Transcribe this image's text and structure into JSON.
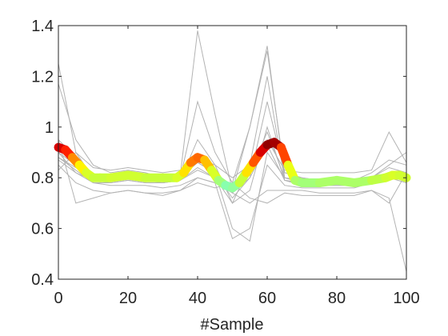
{
  "chart_data": {
    "type": "line",
    "xlabel": "#Sample",
    "ylabel": "",
    "title": "",
    "xlim": [
      0,
      100
    ],
    "ylim": [
      0.4,
      1.4
    ],
    "xticks": [
      0,
      20,
      40,
      60,
      80,
      100
    ],
    "yticks": [
      0.4,
      0.6,
      0.8,
      1.0,
      1.2,
      1.4
    ],
    "xtick_labels": [
      "0",
      "20",
      "40",
      "60",
      "80",
      "100"
    ],
    "ytick_labels": [
      "0.4",
      "0.6",
      "0.8",
      "1",
      "1.2",
      "1.4"
    ],
    "grid": false,
    "background_series_color": "#b3b3b3",
    "background_series": [
      {
        "x": [
          0,
          5,
          10,
          15,
          20,
          25,
          30,
          35,
          40,
          45,
          50,
          55,
          60,
          65,
          70,
          75,
          80,
          85,
          90,
          95,
          100
        ],
        "y": [
          1.25,
          0.9,
          0.8,
          0.8,
          0.81,
          0.8,
          0.8,
          0.81,
          1.38,
          1.05,
          0.75,
          1.0,
          1.3,
          0.82,
          0.8,
          0.79,
          0.79,
          0.79,
          0.8,
          0.82,
          0.8
        ]
      },
      {
        "x": [
          0,
          5,
          10,
          15,
          20,
          25,
          30,
          35,
          40,
          45,
          50,
          55,
          60,
          65,
          70,
          75,
          80,
          85,
          90,
          95,
          100
        ],
        "y": [
          1.17,
          0.95,
          0.85,
          0.82,
          0.83,
          0.82,
          0.8,
          0.8,
          1.1,
          0.9,
          0.78,
          1.0,
          1.32,
          0.8,
          0.78,
          0.78,
          0.78,
          0.78,
          0.8,
          0.85,
          0.9
        ]
      },
      {
        "x": [
          0,
          5,
          10,
          15,
          20,
          25,
          30,
          35,
          40,
          45,
          50,
          55,
          60,
          65,
          70,
          75,
          80,
          85,
          90,
          95,
          100
        ],
        "y": [
          0.95,
          0.88,
          0.8,
          0.79,
          0.8,
          0.79,
          0.78,
          0.79,
          0.95,
          0.85,
          0.7,
          0.85,
          1.2,
          0.79,
          0.77,
          0.77,
          0.77,
          0.77,
          0.78,
          0.8,
          0.78
        ]
      },
      {
        "x": [
          0,
          5,
          10,
          15,
          20,
          25,
          30,
          35,
          40,
          45,
          50,
          55,
          60,
          65,
          70,
          75,
          80,
          85,
          90,
          95,
          100
        ],
        "y": [
          0.92,
          0.86,
          0.8,
          0.8,
          0.81,
          0.8,
          0.8,
          0.8,
          0.88,
          0.82,
          0.72,
          0.8,
          1.1,
          0.82,
          0.8,
          0.79,
          0.79,
          0.79,
          0.82,
          0.87,
          0.85
        ]
      },
      {
        "x": [
          0,
          5,
          10,
          15,
          20,
          25,
          30,
          35,
          40,
          45,
          50,
          55,
          60,
          65,
          70,
          75,
          80,
          85,
          90,
          95,
          100
        ],
        "y": [
          0.9,
          0.85,
          0.8,
          0.81,
          0.82,
          0.81,
          0.8,
          0.81,
          0.86,
          0.82,
          0.6,
          0.55,
          0.9,
          0.8,
          0.79,
          0.78,
          0.78,
          0.78,
          0.8,
          0.82,
          0.8
        ]
      },
      {
        "x": [
          0,
          5,
          10,
          15,
          20,
          25,
          30,
          35,
          40,
          45,
          50,
          55,
          60,
          65,
          70,
          75,
          80,
          85,
          90,
          95,
          100
        ],
        "y": [
          0.88,
          0.83,
          0.78,
          0.77,
          0.77,
          0.77,
          0.76,
          0.77,
          0.8,
          0.78,
          0.56,
          0.6,
          0.85,
          0.77,
          0.76,
          0.76,
          0.76,
          0.76,
          0.78,
          0.8,
          0.8
        ]
      },
      {
        "x": [
          0,
          5,
          10,
          15,
          20,
          25,
          30,
          35,
          40,
          45,
          50,
          55,
          60,
          65,
          70,
          75,
          80,
          85,
          90,
          95,
          100
        ],
        "y": [
          0.87,
          0.82,
          0.79,
          0.78,
          0.79,
          0.78,
          0.78,
          0.79,
          0.83,
          0.8,
          0.7,
          0.75,
          1.0,
          0.79,
          0.78,
          0.78,
          0.78,
          0.77,
          0.79,
          0.81,
          0.79
        ]
      },
      {
        "x": [
          0,
          5,
          10,
          15,
          20,
          25,
          30,
          35,
          40,
          45,
          50,
          55,
          60,
          65,
          70,
          75,
          80,
          85,
          90,
          95,
          100
        ],
        "y": [
          0.85,
          0.78,
          0.75,
          0.74,
          0.75,
          0.74,
          0.74,
          0.75,
          0.78,
          0.76,
          0.78,
          0.72,
          0.7,
          0.74,
          0.73,
          0.73,
          0.73,
          0.73,
          0.75,
          0.72,
          0.43
        ]
      },
      {
        "x": [
          0,
          5,
          10,
          15,
          20,
          25,
          30,
          35,
          40,
          45,
          50,
          55,
          60,
          65,
          70,
          75,
          80,
          85,
          90,
          95,
          100
        ],
        "y": [
          0.95,
          0.7,
          0.72,
          0.74,
          0.75,
          0.74,
          0.73,
          0.75,
          0.8,
          0.78,
          0.74,
          0.7,
          0.75,
          0.75,
          0.75,
          0.74,
          0.74,
          0.74,
          0.75,
          0.7,
          0.82
        ]
      },
      {
        "x": [
          0,
          5,
          10,
          15,
          20,
          25,
          30,
          35,
          40,
          45,
          50,
          55,
          60,
          65,
          70,
          75,
          80,
          85,
          90,
          95,
          100
        ],
        "y": [
          0.83,
          0.9,
          0.84,
          0.83,
          0.84,
          0.83,
          0.82,
          0.83,
          0.88,
          0.85,
          0.8,
          0.85,
          0.95,
          0.83,
          0.82,
          0.82,
          0.82,
          0.82,
          0.83,
          0.98,
          0.86
        ]
      },
      {
        "x": [
          0,
          5,
          10,
          15,
          20,
          25,
          30,
          35,
          40,
          45,
          50,
          55,
          60,
          65,
          70,
          75,
          80,
          85,
          90,
          95,
          100
        ],
        "y": [
          0.88,
          0.84,
          0.81,
          0.8,
          0.8,
          0.79,
          0.79,
          0.8,
          0.86,
          0.82,
          0.76,
          0.82,
          0.98,
          0.8,
          0.79,
          0.79,
          0.79,
          0.79,
          0.8,
          0.84,
          0.82
        ]
      },
      {
        "x": [
          0,
          5,
          10,
          15,
          20,
          25,
          30,
          35,
          40,
          45,
          50,
          55,
          60,
          65,
          70,
          75,
          80,
          85,
          90,
          95,
          100
        ],
        "y": [
          0.9,
          0.82,
          0.78,
          0.78,
          0.79,
          0.78,
          0.78,
          0.79,
          0.84,
          0.8,
          0.74,
          0.8,
          0.93,
          0.79,
          0.78,
          0.77,
          0.77,
          0.77,
          0.79,
          0.82,
          0.81
        ]
      }
    ],
    "mean_series": {
      "x": [
        0,
        2,
        4,
        6,
        8,
        10,
        12,
        15,
        20,
        25,
        30,
        34,
        36,
        38,
        40,
        42,
        44,
        46,
        48,
        50,
        52,
        54,
        56,
        58,
        60,
        62,
        64,
        66,
        68,
        70,
        75,
        80,
        85,
        90,
        94,
        96,
        98,
        100
      ],
      "y": [
        0.92,
        0.91,
        0.88,
        0.85,
        0.82,
        0.8,
        0.8,
        0.8,
        0.81,
        0.8,
        0.8,
        0.8,
        0.82,
        0.86,
        0.88,
        0.87,
        0.83,
        0.79,
        0.77,
        0.76,
        0.78,
        0.82,
        0.86,
        0.9,
        0.93,
        0.94,
        0.92,
        0.85,
        0.79,
        0.78,
        0.78,
        0.79,
        0.78,
        0.79,
        0.8,
        0.81,
        0.81,
        0.8
      ]
    },
    "mean_series_colormap": [
      "#7fffc0",
      "#c0ff40",
      "#ffff00",
      "#ff8000",
      "#ff0000",
      "#800000"
    ]
  }
}
